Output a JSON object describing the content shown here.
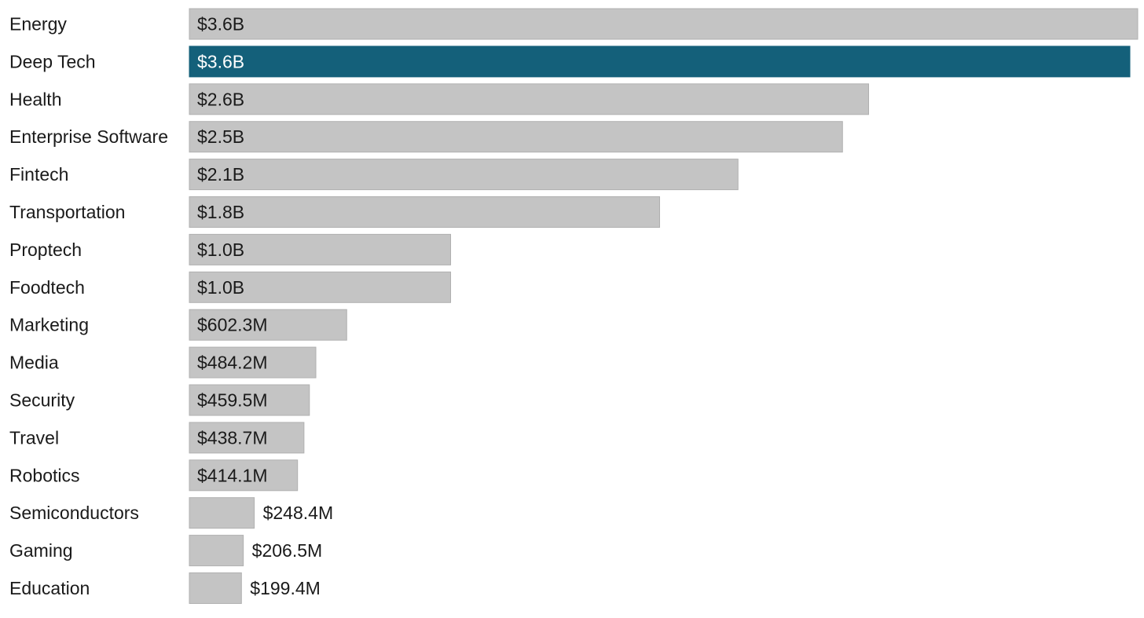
{
  "chart_data": {
    "type": "bar",
    "orientation": "horizontal",
    "title": "",
    "xlabel": "",
    "ylabel": "",
    "grid": false,
    "legend": "none",
    "unit": "USD billions",
    "xlim": [
      0,
      3.63
    ],
    "categories": [
      "Energy",
      "Deep Tech",
      "Health",
      "Enterprise Software",
      "Fintech",
      "Transportation",
      "Proptech",
      "Foodtech",
      "Marketing",
      "Media",
      "Security",
      "Travel",
      "Robotics",
      "Semiconductors",
      "Gaming",
      "Education"
    ],
    "values": [
      3.63,
      3.6,
      2.6,
      2.5,
      2.1,
      1.8,
      1.0,
      1.0,
      0.6023,
      0.4842,
      0.4595,
      0.4387,
      0.4141,
      0.2484,
      0.2065,
      0.1994
    ],
    "data_labels": [
      "$3.6B",
      "$3.6B",
      "$2.6B",
      "$2.5B",
      "$2.1B",
      "$1.8B",
      "$1.0B",
      "$1.0B",
      "$602.3M",
      "$484.2M",
      "$459.5M",
      "$438.7M",
      "$414.1M",
      "$248.4M",
      "$206.5M",
      "$199.4M"
    ],
    "highlight_index": 1,
    "colors": {
      "bar": "#c4c4c4",
      "bar_border": "#b0b0b0",
      "highlight": "#14607a",
      "label": "#1a1a1a",
      "highlight_label": "#ffffff"
    }
  }
}
